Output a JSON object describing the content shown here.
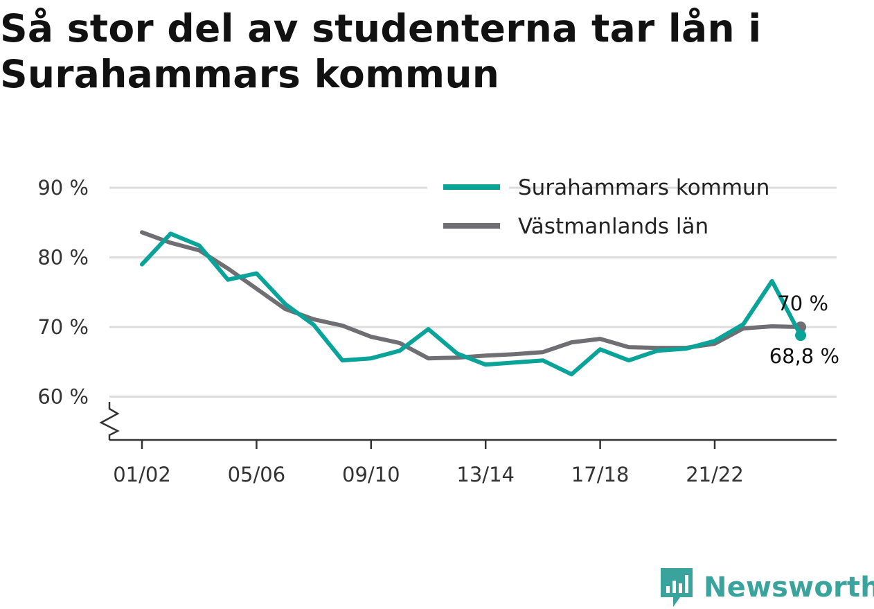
{
  "title": "Så stor del av studenterna tar lån i Surahammars kommun",
  "brand": {
    "name": "Newsworthy",
    "color": "#3aa39b"
  },
  "chart_data": {
    "type": "line",
    "x": [
      "01/02",
      "02/03",
      "03/04",
      "04/05",
      "05/06",
      "06/07",
      "07/08",
      "08/09",
      "09/10",
      "10/11",
      "11/12",
      "12/13",
      "13/14",
      "14/15",
      "15/16",
      "16/17",
      "17/18",
      "18/19",
      "19/20",
      "20/21",
      "21/22",
      "22/23",
      "23/24",
      "24/25"
    ],
    "x_tick_labels": [
      "01/02",
      "05/06",
      "09/10",
      "13/14",
      "17/18",
      "21/22"
    ],
    "y_tick_values": [
      60,
      70,
      80,
      90
    ],
    "y_tick_labels": [
      "60 %",
      "70 %",
      "80 %",
      "90 %"
    ],
    "ylim": [
      54,
      92
    ],
    "y_axis_break": true,
    "grid": true,
    "legend_position": "top-right",
    "series": [
      {
        "name": "Surahammars kommun",
        "color": "#0aa39a",
        "values": [
          79,
          83.4,
          81.7,
          76.8,
          77.7,
          73.3,
          70.3,
          65.2,
          65.5,
          66.6,
          69.7,
          66.2,
          64.6,
          64.9,
          65.2,
          63.2,
          66.8,
          65.2,
          66.6,
          66.9,
          68,
          70.4,
          76.6,
          68.8
        ],
        "end_label": "68,8 %"
      },
      {
        "name": "Västmanlands län",
        "color": "#6e6e73",
        "values": [
          83.6,
          82.1,
          81,
          78.4,
          75.5,
          72.6,
          71.1,
          70.2,
          68.6,
          67.7,
          65.5,
          65.6,
          65.9,
          66.1,
          66.4,
          67.8,
          68.3,
          67.1,
          67,
          67,
          67.6,
          69.8,
          70.1,
          70
        ],
        "end_label": "70 %"
      }
    ]
  }
}
